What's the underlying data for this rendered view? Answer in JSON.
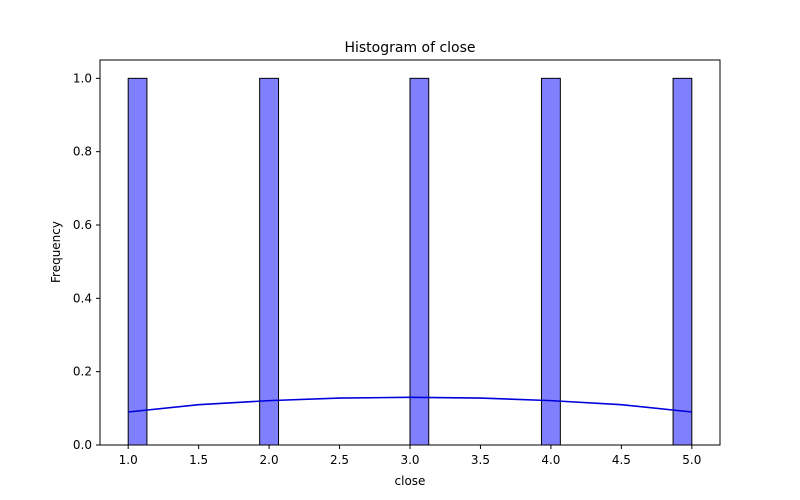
{
  "chart_data": {
    "type": "bar",
    "title": "Histogram of close",
    "xlabel": "close",
    "ylabel": "Frequency",
    "xlim": [
      0.8,
      5.2
    ],
    "ylim": [
      0,
      1.05
    ],
    "x_ticks": [
      1.0,
      1.5,
      2.0,
      2.5,
      3.0,
      3.5,
      4.0,
      4.5,
      5.0
    ],
    "x_tick_labels": [
      "1.0",
      "1.5",
      "2.0",
      "2.5",
      "3.0",
      "3.5",
      "4.0",
      "4.5",
      "5.0"
    ],
    "y_ticks": [
      0.0,
      0.2,
      0.4,
      0.6,
      0.8,
      1.0
    ],
    "y_tick_labels": [
      "0.0",
      "0.2",
      "0.4",
      "0.6",
      "0.8",
      "1.0"
    ],
    "bins": [
      {
        "start": 1.0,
        "end": 1.133,
        "count": 1
      },
      {
        "start": 1.933,
        "end": 2.067,
        "count": 1
      },
      {
        "start": 3.0,
        "end": 3.133,
        "count": 1
      },
      {
        "start": 3.933,
        "end": 4.067,
        "count": 1
      },
      {
        "start": 4.867,
        "end": 5.0,
        "count": 1
      }
    ],
    "kde": {
      "x": [
        1.0,
        1.5,
        2.0,
        2.5,
        3.0,
        3.5,
        4.0,
        4.5,
        5.0
      ],
      "y": [
        0.09,
        0.11,
        0.121,
        0.128,
        0.13,
        0.128,
        0.121,
        0.11,
        0.09
      ]
    },
    "colors": {
      "bar_fill": "#8080ff",
      "bar_edge": "#000000",
      "kde_line": "#0000dd"
    },
    "grid": false,
    "legend": "none"
  }
}
